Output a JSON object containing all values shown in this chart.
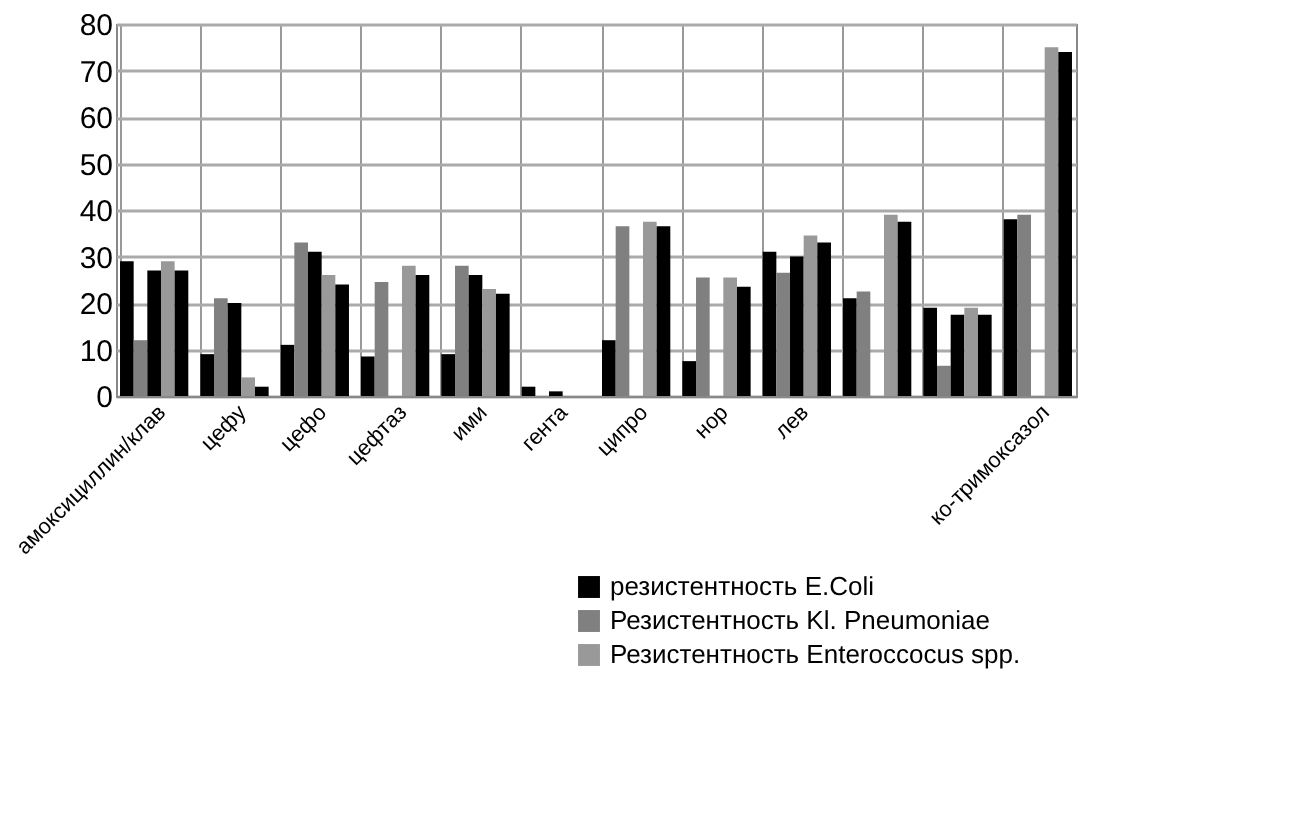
{
  "chart_data": {
    "type": "bar",
    "categories": [
      "амоксициллин/клав",
      "цефу",
      "цефо",
      "цефтаз",
      "ими",
      "гента",
      "ципро",
      "нор",
      "лев",
      null,
      null,
      "ко-тримоксазол"
    ],
    "series": [
      {
        "name": "резистентность E.Coli",
        "color": "#000000",
        "values": [
          29,
          9,
          11,
          8.5,
          9,
          2,
          12,
          7.5,
          31,
          21,
          19,
          38
        ]
      },
      {
        "name": "Резистентность Kl. Pneumoniae",
        "color": "#808080",
        "values": [
          12,
          21,
          33,
          24.5,
          28,
          null,
          36.5,
          25.5,
          26.5,
          22.5,
          6.5,
          39
        ]
      },
      {
        "color": "#000000",
        "values": [
          27,
          20,
          31,
          null,
          26,
          1,
          null,
          null,
          30,
          null,
          17.5,
          null
        ]
      },
      {
        "name": " Резистентность Enteroccocus spp.",
        "color": "#999999",
        "values": [
          29,
          4,
          26,
          28,
          23,
          null,
          37.5,
          25.5,
          34.5,
          39,
          19,
          75
        ]
      },
      {
        "color": "#000000",
        "values": [
          27,
          2,
          24,
          26,
          22,
          null,
          36.5,
          23.5,
          33,
          37.5,
          17.5,
          74
        ]
      }
    ],
    "ylim": [
      0,
      80
    ],
    "yticks": [
      0,
      10,
      20,
      30,
      40,
      50,
      60,
      70,
      80
    ],
    "grid": true,
    "legend": "bottom right"
  }
}
